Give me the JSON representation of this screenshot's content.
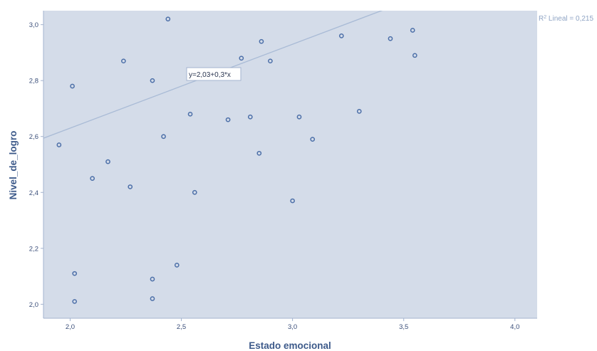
{
  "chart_data": {
    "type": "scatter",
    "title": "",
    "xlabel": "Estado emocional",
    "ylabel": "Nivel_de_logro",
    "xlim": [
      1.88,
      4.1
    ],
    "ylim": [
      1.95,
      3.05
    ],
    "x_ticks": [
      {
        "value": 2.0,
        "label": "2,0"
      },
      {
        "value": 2.5,
        "label": "2,5"
      },
      {
        "value": 3.0,
        "label": "3,0"
      },
      {
        "value": 3.5,
        "label": "3,5"
      },
      {
        "value": 4.0,
        "label": "4,0"
      }
    ],
    "y_ticks": [
      {
        "value": 2.0,
        "label": "2,0"
      },
      {
        "value": 2.2,
        "label": "2,2"
      },
      {
        "value": 2.4,
        "label": "2,4"
      },
      {
        "value": 2.6,
        "label": "2,6"
      },
      {
        "value": 2.8,
        "label": "2,8"
      },
      {
        "value": 3.0,
        "label": "3,0"
      }
    ],
    "grid": false,
    "points": [
      {
        "x": 1.95,
        "y": 2.57
      },
      {
        "x": 2.01,
        "y": 2.78
      },
      {
        "x": 2.02,
        "y": 2.11
      },
      {
        "x": 2.02,
        "y": 2.01
      },
      {
        "x": 2.1,
        "y": 2.45
      },
      {
        "x": 2.17,
        "y": 2.51
      },
      {
        "x": 2.24,
        "y": 2.87
      },
      {
        "x": 2.27,
        "y": 2.42
      },
      {
        "x": 2.37,
        "y": 2.8
      },
      {
        "x": 2.37,
        "y": 2.09
      },
      {
        "x": 2.37,
        "y": 2.02
      },
      {
        "x": 2.42,
        "y": 2.6
      },
      {
        "x": 2.44,
        "y": 3.02
      },
      {
        "x": 2.48,
        "y": 2.14
      },
      {
        "x": 2.54,
        "y": 2.68
      },
      {
        "x": 2.56,
        "y": 2.4
      },
      {
        "x": 2.71,
        "y": 2.66
      },
      {
        "x": 2.77,
        "y": 2.88
      },
      {
        "x": 2.81,
        "y": 2.67
      },
      {
        "x": 2.85,
        "y": 2.54
      },
      {
        "x": 2.86,
        "y": 2.94
      },
      {
        "x": 2.9,
        "y": 2.87
      },
      {
        "x": 3.0,
        "y": 2.37
      },
      {
        "x": 3.03,
        "y": 2.67
      },
      {
        "x": 3.09,
        "y": 2.59
      },
      {
        "x": 3.22,
        "y": 2.96
      },
      {
        "x": 3.3,
        "y": 2.69
      },
      {
        "x": 3.44,
        "y": 2.95
      },
      {
        "x": 3.54,
        "y": 2.98
      },
      {
        "x": 3.55,
        "y": 2.89
      }
    ],
    "fit_line": {
      "intercept": 2.03,
      "slope": 0.3,
      "equation_label": "y=2,03+0,3*x"
    },
    "r2_label": {
      "prefix": "R",
      "superscript": "2",
      "text": " Lineal = 0,215"
    },
    "colors": {
      "plot_bg": "#d4dce9",
      "axis": "#a3b3cf",
      "point": "#4c6fa8",
      "fit_line": "#a9bbd6",
      "axis_title": "#3d5a8a"
    }
  }
}
